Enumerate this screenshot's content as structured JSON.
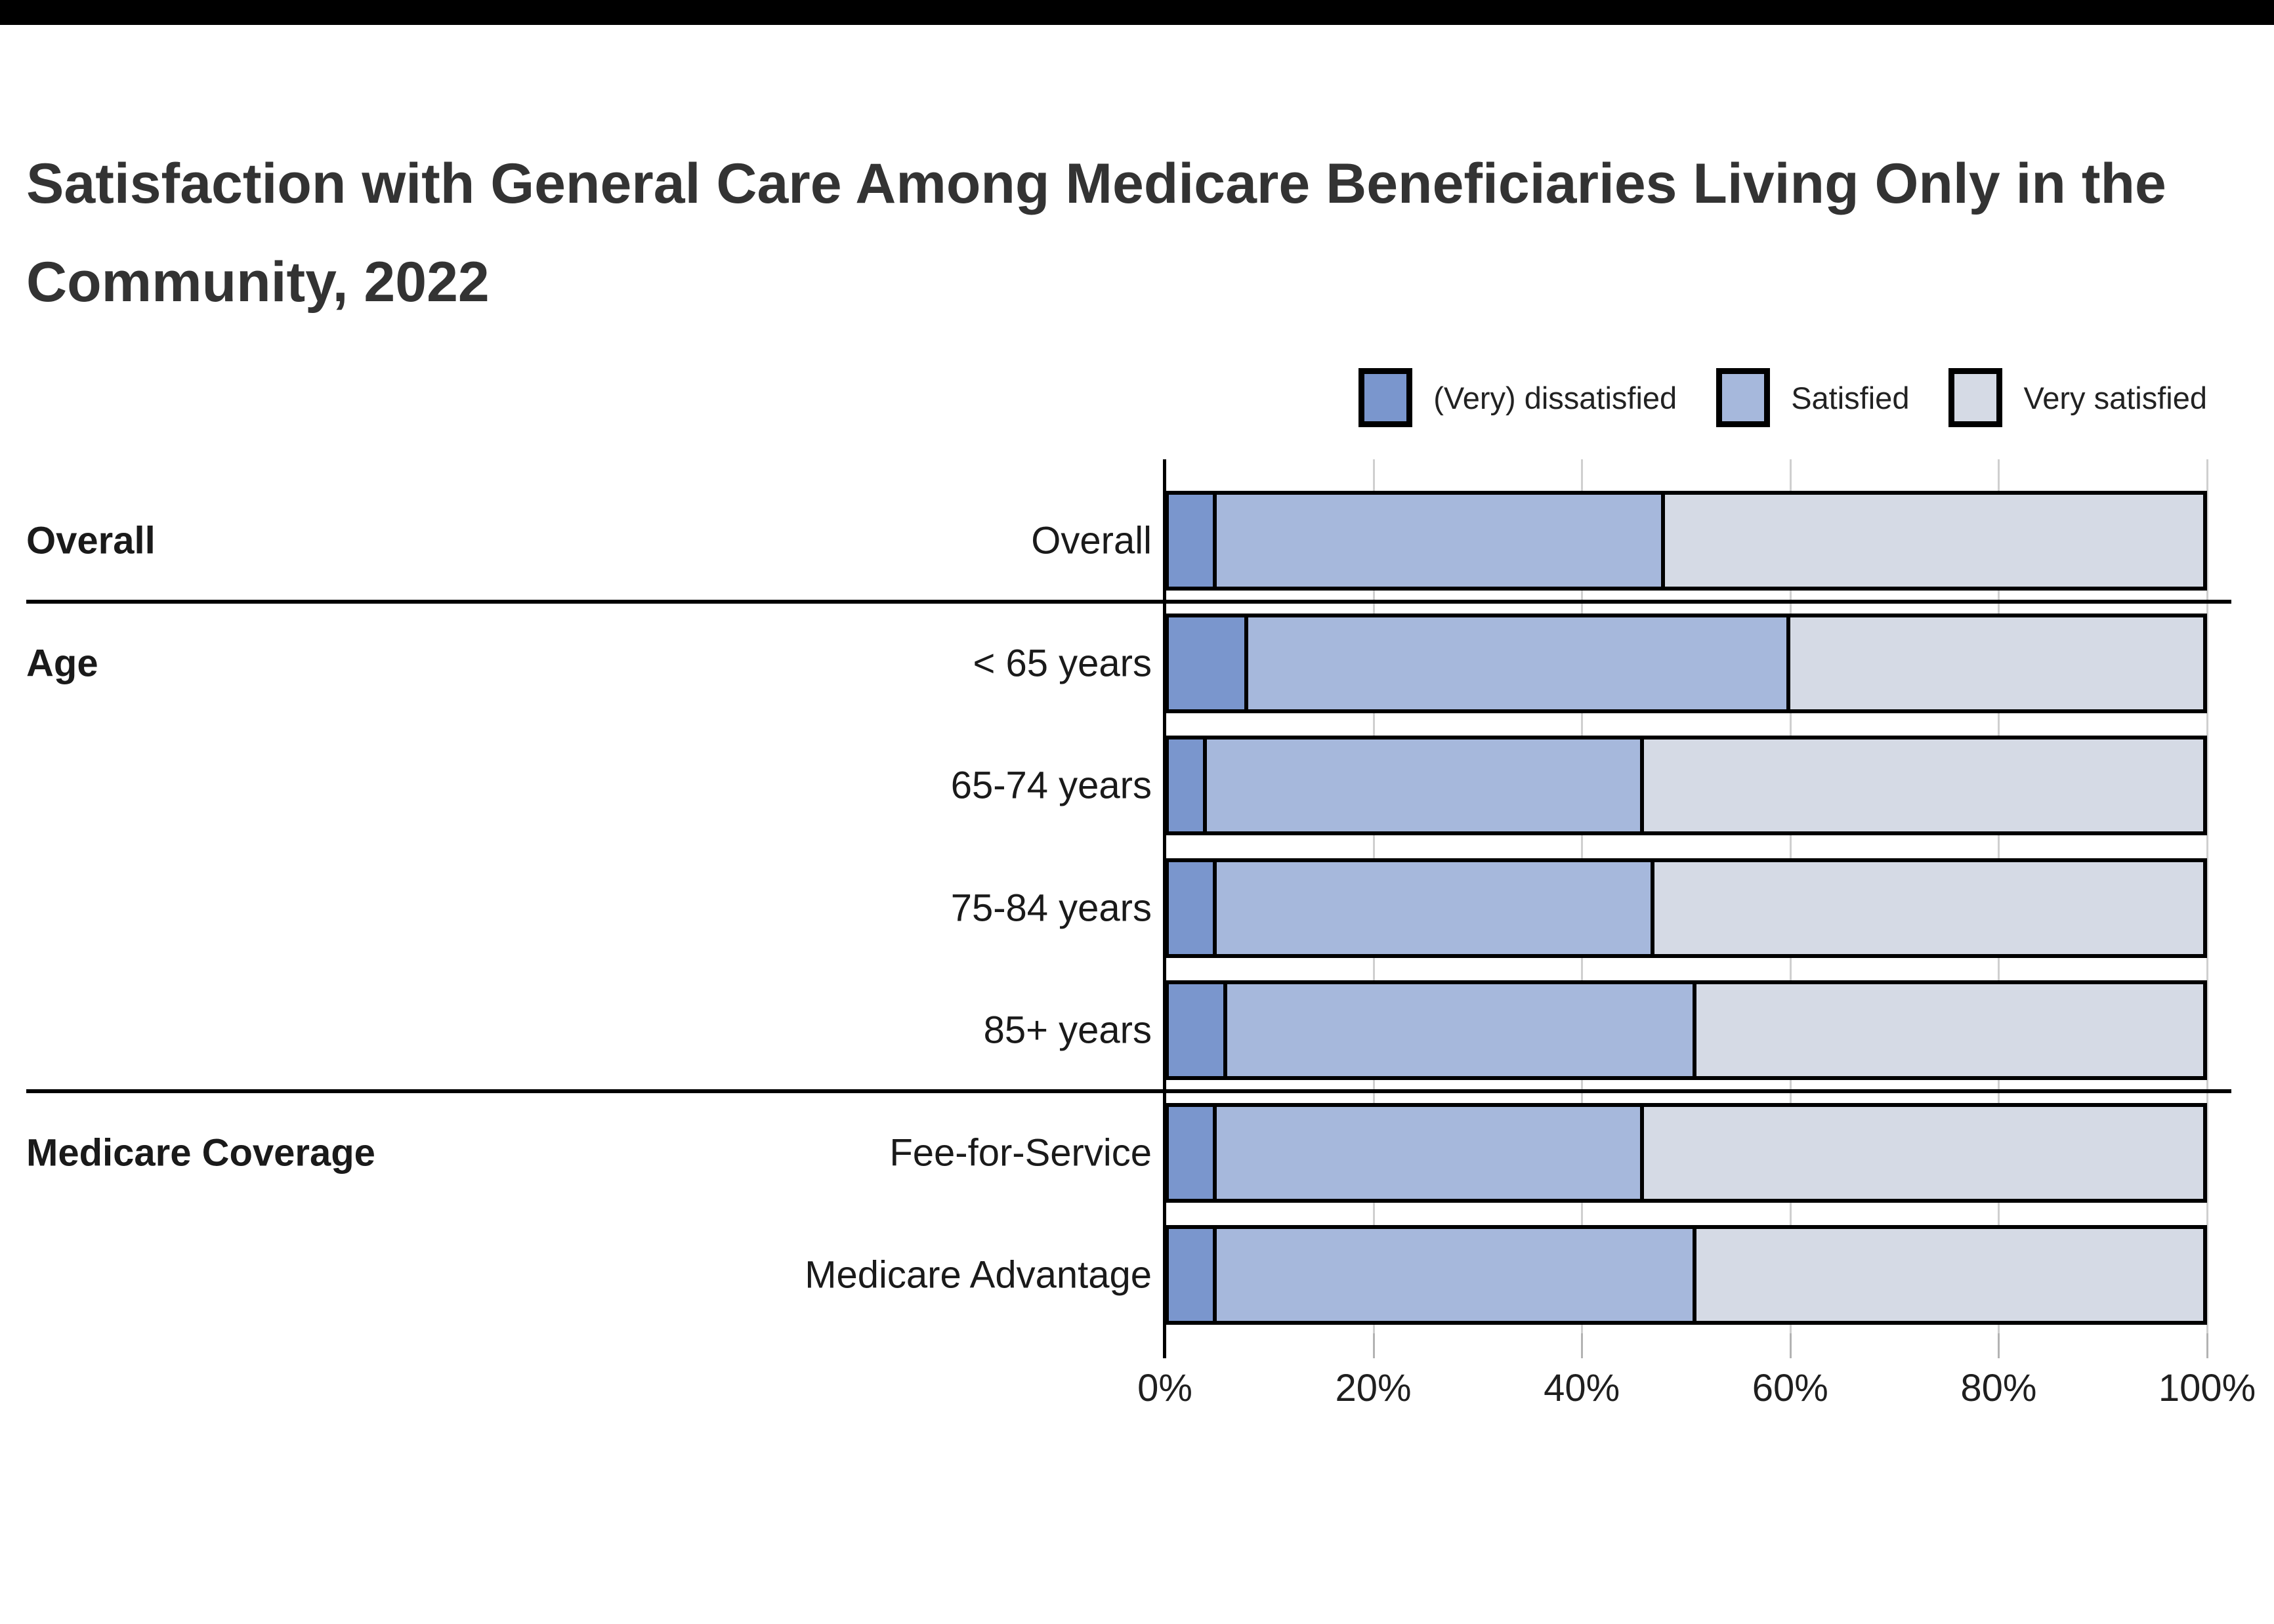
{
  "page": {
    "top_bar_color": "#000000",
    "background_color": "#ffffff"
  },
  "title": {
    "line1": "Satisfaction with General Care Among Medicare Beneficiaries Living Only in the",
    "line2": "Community, 2022",
    "color": "#333333"
  },
  "legend": {
    "position": "top-right",
    "items": [
      {
        "label": "(Very) dissatisfied",
        "color": "#7A96CD"
      },
      {
        "label": "Satisfied",
        "color": "#A6B8DC"
      },
      {
        "label": "Very satisfied",
        "color": "#D5DAE5"
      }
    ]
  },
  "axis": {
    "ticks": [
      "0%",
      "20%",
      "40%",
      "60%",
      "80%",
      "100%"
    ],
    "tick_values": [
      0,
      20,
      40,
      60,
      80,
      100
    ]
  },
  "chart_data": {
    "type": "bar",
    "orientation": "horizontal",
    "stacked": true,
    "title": "Satisfaction with General Care Among Medicare Beneficiaries Living Only in the Community, 2022",
    "categories": [
      "Overall",
      "< 65 years",
      "65-74 years",
      "75-84 years",
      "85+ years",
      "Fee-for-Service",
      "Medicare Advantage"
    ],
    "series": [
      {
        "name": "(Very) dissatisfied",
        "color": "#7A96CD",
        "values": [
          5,
          8,
          4,
          5,
          6,
          5,
          5
        ]
      },
      {
        "name": "Satisfied",
        "color": "#A6B8DC",
        "values": [
          43,
          52,
          42,
          42,
          45,
          41,
          46
        ]
      },
      {
        "name": "Very satisfied",
        "color": "#D5DAE5",
        "values": [
          52,
          40,
          54,
          53,
          49,
          54,
          49
        ]
      }
    ],
    "groups": [
      {
        "label": "Overall",
        "row_indexes": [
          0
        ]
      },
      {
        "label": "Age",
        "row_indexes": [
          1,
          2,
          3,
          4
        ]
      },
      {
        "label": "Medicare Coverage",
        "row_indexes": [
          5,
          6
        ]
      }
    ],
    "xlabel": "",
    "ylabel": "",
    "xlim": [
      0,
      100
    ],
    "grid": true,
    "bar_border_color": "#000000",
    "legend_position": "top-right"
  }
}
